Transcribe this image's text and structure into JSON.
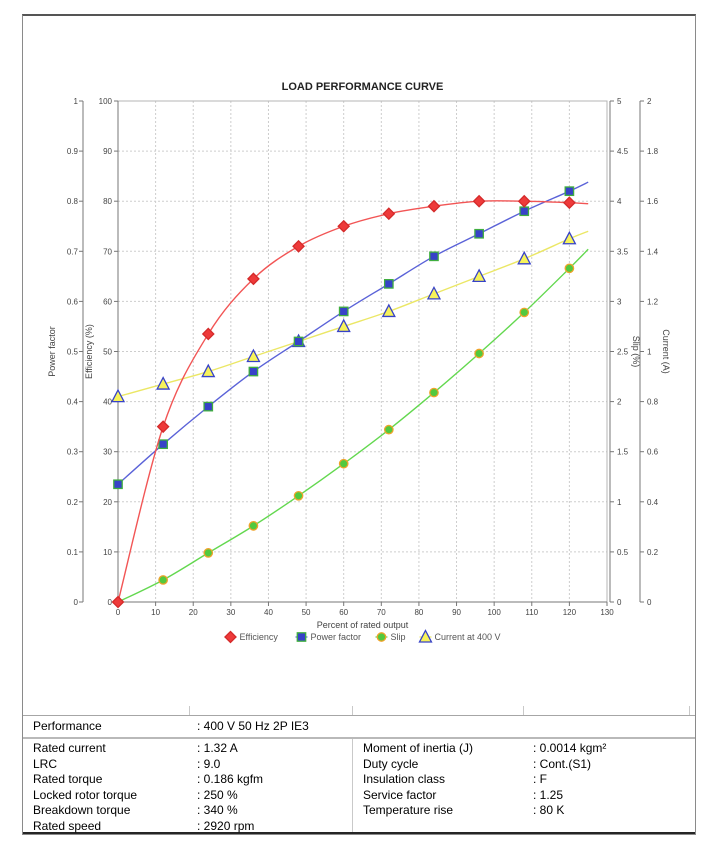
{
  "page": {
    "background": "#ffffff",
    "border_color": "#555555"
  },
  "chart_data": {
    "type": "line",
    "title": "LOAD PERFORMANCE CURVE",
    "xlabel": "Percent of rated output",
    "grid": "dashed",
    "legend_position": "bottom",
    "x_axis": {
      "min": 0,
      "max": 130,
      "tick_step": 10
    },
    "x": [
      0,
      12,
      24,
      36,
      48,
      60,
      72,
      84,
      96,
      108,
      120
    ],
    "axes": [
      {
        "id": "power_factor",
        "label": "Power factor",
        "side": "left",
        "min": 0,
        "max": 1,
        "step": 0.1
      },
      {
        "id": "efficiency",
        "label": "Efficiency (%)",
        "side": "left",
        "min": 0,
        "max": 100,
        "step": 10
      },
      {
        "id": "slip",
        "label": "Slip (%)",
        "side": "right",
        "min": 0,
        "max": 5,
        "step": 0.5
      },
      {
        "id": "current",
        "label": "Current (A)",
        "side": "right",
        "min": 0,
        "max": 2,
        "step": 0.2
      }
    ],
    "series": [
      {
        "name": "Efficiency",
        "axis": "efficiency",
        "marker": "diamond",
        "fill": "#ee3a3a",
        "stroke": "#d42a2a",
        "line_color": "#f25555",
        "values": [
          0,
          35,
          53.5,
          64.5,
          71,
          75,
          77.5,
          79,
          80,
          80,
          79.7
        ],
        "ext": [
          125,
          79.5
        ],
        "markers_from": 0
      },
      {
        "name": "Power factor",
        "axis": "power_factor",
        "marker": "square",
        "fill": "#3742c8",
        "stroke": "#3fae3f",
        "line_color": "#5a62d8",
        "values": [
          0.235,
          0.315,
          0.39,
          0.46,
          0.52,
          0.58,
          0.635,
          0.69,
          0.735,
          0.78,
          0.82
        ],
        "ext": [
          125,
          0.838
        ],
        "markers_from": 0
      },
      {
        "name": "Slip",
        "axis": "slip",
        "marker": "circle",
        "fill": "#52c93e",
        "stroke": "#efa32a",
        "line_color": "#63d84f",
        "values": [
          0,
          0.22,
          0.49,
          0.76,
          1.06,
          1.38,
          1.72,
          2.09,
          2.48,
          2.89,
          3.33
        ],
        "ext": [
          125,
          3.52
        ],
        "markers_from": 1
      },
      {
        "name": "Current at 400 V",
        "axis": "current",
        "marker": "triangle",
        "fill": "#f7f35a",
        "stroke": "#3742c8",
        "line_color": "#ebe765",
        "values": [
          0.82,
          0.87,
          0.92,
          0.98,
          1.04,
          1.1,
          1.16,
          1.23,
          1.3,
          1.37,
          1.45
        ],
        "ext": [
          125,
          1.48
        ],
        "markers_from": 0
      }
    ]
  },
  "spec_table": {
    "header": {
      "label": "Performance",
      "value": ": 400 V 50 Hz 2P IE3"
    },
    "left_rows": [
      {
        "label": "Rated current",
        "value": ": 1.32 A"
      },
      {
        "label": "LRC",
        "value": ": 9.0"
      },
      {
        "label": "Rated torque",
        "value": ": 0.186 kgfm"
      },
      {
        "label": "Locked rotor torque",
        "value": ": 250 %"
      },
      {
        "label": "Breakdown torque",
        "value": ": 340 %"
      },
      {
        "label": "Rated speed",
        "value": ": 2920 rpm"
      }
    ],
    "right_rows": [
      {
        "label": "Moment of inertia (J)",
        "value": ": 0.0014 kgm²"
      },
      {
        "label": "Duty cycle",
        "value": ": Cont.(S1)"
      },
      {
        "label": "Insulation class",
        "value": ": F"
      },
      {
        "label": "Service factor",
        "value": ": 1.25"
      },
      {
        "label": "Temperature rise",
        "value": ": 80 K"
      }
    ]
  }
}
